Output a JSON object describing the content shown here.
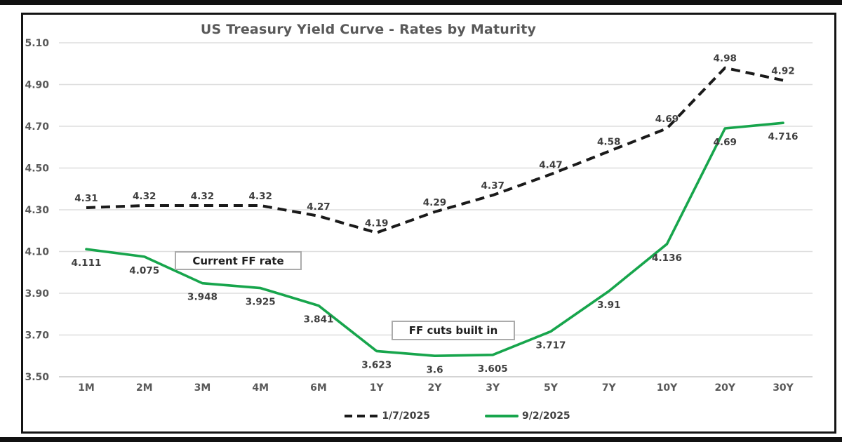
{
  "chart_data": {
    "type": "line",
    "title": "US Treasury Yield Curve - Rates by Maturity",
    "categories": [
      "1M",
      "2M",
      "3M",
      "4M",
      "6M",
      "1Y",
      "2Y",
      "3Y",
      "5Y",
      "7Y",
      "10Y",
      "20Y",
      "30Y"
    ],
    "series": [
      {
        "name": "1/7/2025",
        "color": "#1a1a1a",
        "line_style": "dashed",
        "values": [
          4.31,
          4.32,
          4.32,
          4.32,
          4.27,
          4.19,
          4.29,
          4.37,
          4.47,
          4.58,
          4.69,
          4.98,
          4.92
        ],
        "labels": [
          "4.31",
          "4.32",
          "4.32",
          "4.32",
          "4.27",
          "4.19",
          "4.29",
          "4.37",
          "4.47",
          "4.58",
          "4.69",
          "4.98",
          "4.92"
        ]
      },
      {
        "name": "9/2/2025",
        "color": "#17a54c",
        "line_style": "solid",
        "values": [
          4.111,
          4.075,
          3.948,
          3.925,
          3.841,
          3.623,
          3.6,
          3.605,
          3.717,
          3.91,
          4.136,
          4.69,
          4.716
        ],
        "labels": [
          "4.111",
          "4.075",
          "3.948",
          "3.925",
          "3.841",
          "3.623",
          "3.6",
          "3.605",
          "3.717",
          "3.91",
          "4.136",
          "4.69",
          "4.716"
        ]
      }
    ],
    "ylim": [
      3.5,
      5.1
    ],
    "ytick_labels": [
      "5.10",
      "4.90",
      "4.70",
      "4.50",
      "4.30",
      "4.10",
      "3.90",
      "3.70",
      "3.50"
    ],
    "grid": true,
    "legend_position": "bottom",
    "annotations": [
      {
        "text": "Current FF rate"
      },
      {
        "text": "FF cuts built in"
      }
    ]
  }
}
